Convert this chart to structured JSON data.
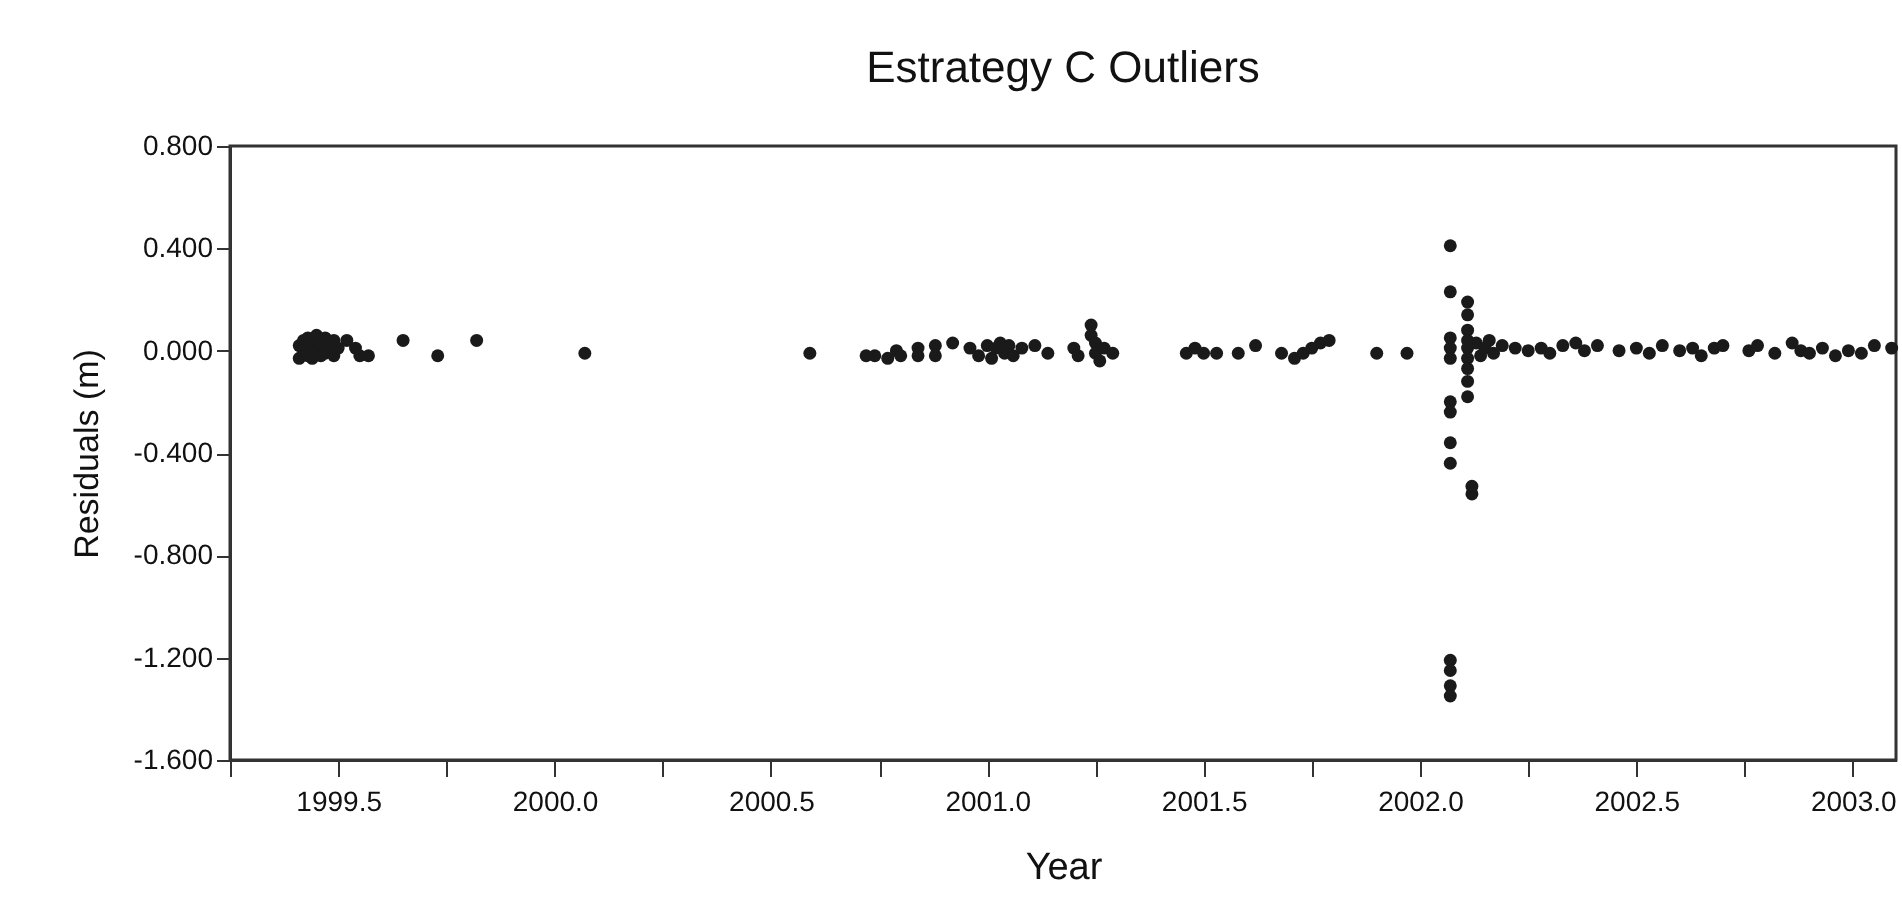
{
  "chart_data": {
    "type": "scatter",
    "title": "Estrategy C Outliers",
    "xlabel": "Year",
    "ylabel": "Residuals (m)",
    "marker": "circle",
    "xlim": [
      1999.25,
      2003.1
    ],
    "ylim": [
      -1.6,
      0.8
    ],
    "xticks": [
      {
        "value": 1999.25,
        "label": null
      },
      {
        "value": 1999.5,
        "label": "1999.5"
      },
      {
        "value": 1999.75,
        "label": null
      },
      {
        "value": 2000,
        "label": "2000.0"
      },
      {
        "value": 2000.25,
        "label": null
      },
      {
        "value": 2000.5,
        "label": "2000.5"
      },
      {
        "value": 2000.75,
        "label": null
      },
      {
        "value": 2001,
        "label": "2001.0"
      },
      {
        "value": 2001.25,
        "label": null
      },
      {
        "value": 2001.5,
        "label": "2001.5"
      },
      {
        "value": 2001.75,
        "label": null
      },
      {
        "value": 2002,
        "label": "2002.0"
      },
      {
        "value": 2002.25,
        "label": null
      },
      {
        "value": 2002.5,
        "label": "2002.5"
      },
      {
        "value": 2002.75,
        "label": null
      },
      {
        "value": 2003,
        "label": "2003.0"
      }
    ],
    "yticks": [
      {
        "value": 0.8,
        "label": "0.800"
      },
      {
        "value": 0.4,
        "label": "0.400"
      },
      {
        "value": 0,
        "label": "0.000"
      },
      {
        "value": -0.4,
        "label": "-0.400"
      },
      {
        "value": -0.8,
        "label": "-0.800"
      },
      {
        "value": -1.2,
        "label": "-1.200"
      },
      {
        "value": -1.6,
        "label": "-1.600"
      }
    ],
    "series": [
      {
        "color": "#1a1a1a",
        "x": [
          1999.41,
          1999.41,
          1999.42,
          1999.42,
          1999.43,
          1999.43,
          1999.44,
          1999.44,
          1999.45,
          1999.45,
          1999.46,
          1999.46,
          1999.47,
          1999.47,
          1999.48,
          1999.49,
          1999.49,
          1999.5,
          1999.52,
          1999.54,
          1999.55,
          1999.57,
          1999.65,
          1999.73,
          1999.82,
          2000.07,
          2000.59,
          2000.72,
          2000.74,
          2000.77,
          2000.79,
          2000.8,
          2000.84,
          2000.84,
          2000.88,
          2000.88,
          2000.92,
          2000.96,
          2000.98,
          2001.0,
          2001.01,
          2001.02,
          2001.03,
          2001.04,
          2001.05,
          2001.06,
          2001.08,
          2001.11,
          2001.14,
          2001.2,
          2001.21,
          2001.24,
          2001.24,
          2001.25,
          2001.25,
          2001.26,
          2001.27,
          2001.29,
          2001.46,
          2001.48,
          2001.5,
          2001.53,
          2001.58,
          2001.62,
          2001.68,
          2001.71,
          2001.73,
          2001.75,
          2001.77,
          2001.79,
          2001.9,
          2001.97,
          2002.07,
          2002.07,
          2002.07,
          2002.07,
          2002.07,
          2002.07,
          2002.07,
          2002.07,
          2002.07,
          2002.07,
          2002.07,
          2002.07,
          2002.07,
          2002.11,
          2002.11,
          2002.11,
          2002.11,
          2002.11,
          2002.11,
          2002.11,
          2002.11,
          2002.11,
          2002.12,
          2002.12,
          2002.13,
          2002.14,
          2002.15,
          2002.16,
          2002.17,
          2002.19,
          2002.22,
          2002.25,
          2002.28,
          2002.3,
          2002.33,
          2002.36,
          2002.38,
          2002.41,
          2002.46,
          2002.5,
          2002.53,
          2002.56,
          2002.6,
          2002.63,
          2002.65,
          2002.68,
          2002.7,
          2002.76,
          2002.78,
          2002.82,
          2002.86,
          2002.88,
          2002.9,
          2002.93,
          2002.96,
          2002.99,
          2003.02,
          2003.05,
          2003.09
        ],
        "values": [
          0.02,
          -0.03,
          0.04,
          0.0,
          -0.02,
          0.05,
          0.02,
          -0.03,
          0.06,
          0.0,
          -0.02,
          0.03,
          0.05,
          -0.01,
          0.02,
          0.04,
          -0.02,
          0.01,
          0.04,
          0.01,
          -0.02,
          -0.02,
          0.04,
          -0.02,
          0.04,
          -0.01,
          -0.01,
          -0.02,
          -0.02,
          -0.03,
          0.0,
          -0.02,
          0.01,
          -0.02,
          0.02,
          -0.02,
          0.03,
          0.01,
          -0.02,
          0.02,
          -0.03,
          0.01,
          0.03,
          -0.01,
          0.02,
          -0.02,
          0.01,
          0.02,
          -0.01,
          0.01,
          -0.02,
          0.1,
          0.06,
          0.03,
          -0.01,
          -0.04,
          0.01,
          -0.01,
          -0.01,
          0.01,
          -0.01,
          -0.01,
          -0.01,
          0.02,
          -0.01,
          -0.03,
          -0.01,
          0.01,
          0.03,
          0.04,
          -0.01,
          -0.01,
          0.41,
          0.23,
          0.05,
          0.01,
          -0.03,
          -0.2,
          -0.24,
          -0.36,
          -0.44,
          -1.21,
          -1.25,
          -1.31,
          -1.35,
          0.19,
          0.14,
          0.08,
          0.04,
          0.01,
          -0.03,
          -0.07,
          -0.12,
          -0.18,
          -0.53,
          -0.56,
          0.03,
          -0.02,
          0.01,
          0.04,
          -0.01,
          0.02,
          0.01,
          0.0,
          0.01,
          -0.01,
          0.02,
          0.03,
          0.0,
          0.02,
          0.0,
          0.01,
          -0.01,
          0.02,
          0.0,
          0.01,
          -0.02,
          0.01,
          0.02,
          0.0,
          0.02,
          -0.01,
          0.03,
          0.0,
          -0.01,
          0.01,
          -0.02,
          0.0,
          -0.01,
          0.02,
          0.01
        ]
      }
    ]
  }
}
